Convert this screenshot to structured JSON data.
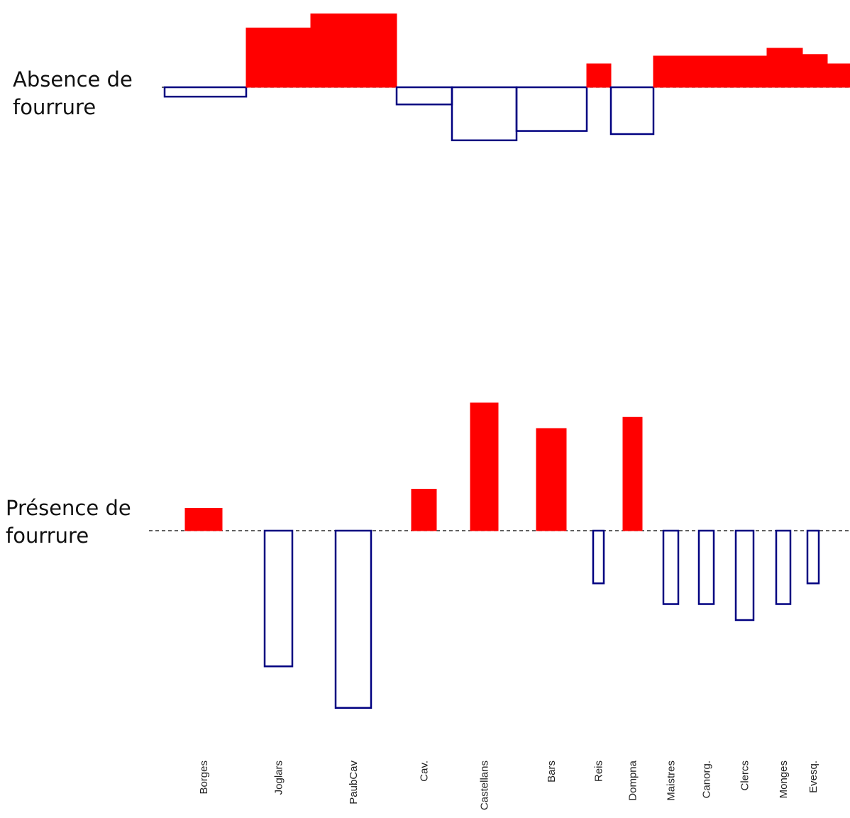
{
  "chart_data": {
    "type": "bar",
    "categories": [
      "Borges",
      "Joglars",
      "PaubCav",
      "Cav.",
      "Castellans",
      "Bars",
      "Reis",
      "Dompna",
      "Maistres",
      "Canorg.",
      "Clercs",
      "Monges",
      "Evesq."
    ],
    "series": [
      {
        "name": "Absence de fourrure",
        "values": [
          -0.6,
          3.8,
          4.7,
          -1.1,
          -3.4,
          -2.8,
          1.5,
          -3.0,
          2.0,
          2.0,
          2.5,
          2.1,
          1.5
        ]
      },
      {
        "name": "Présence de fourrure",
        "values": [
          1.4,
          -8.5,
          -11.1,
          2.6,
          8.0,
          6.4,
          -3.3,
          7.1,
          -4.6,
          -4.6,
          -5.6,
          -4.6,
          -3.3
        ]
      }
    ],
    "colors": {
      "positive": "#ff0000",
      "negative": "#000080",
      "baseline": "#000000"
    },
    "grid": false
  }
}
